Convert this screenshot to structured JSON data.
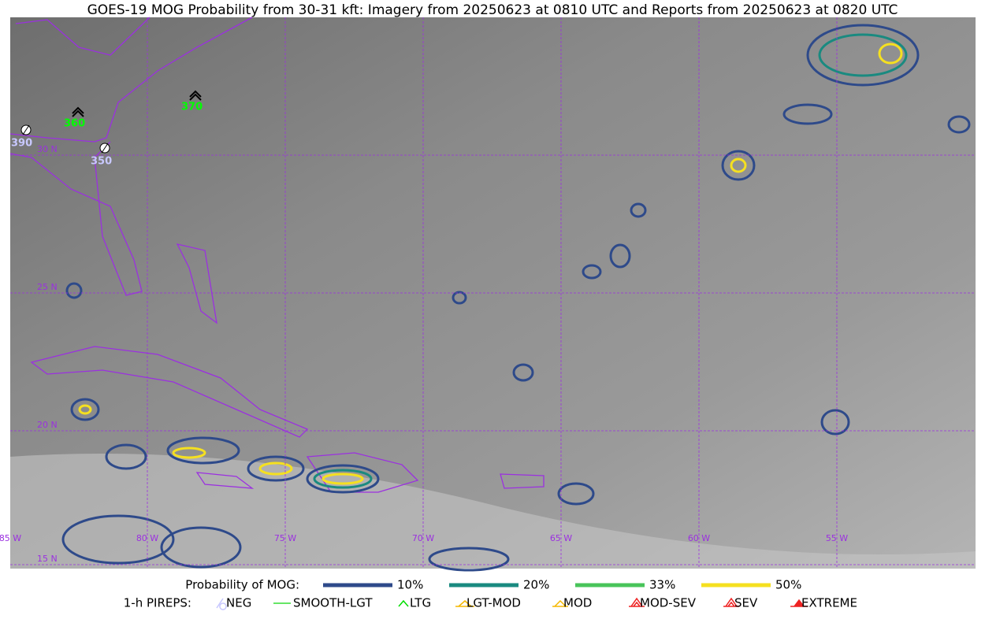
{
  "title": "GOES-19 MOG Probability from 30-31 kft: Imagery from 20250623 at 0810 UTC and Reports from 20250623 at 0820 UTC",
  "map": {
    "lat_labels": [
      "30 N",
      "25 N",
      "20 N",
      "15 N"
    ],
    "lon_labels": [
      "85 W",
      "80 W",
      "75 W",
      "70 W",
      "65 W",
      "60 W",
      "55 W"
    ],
    "pireps": [
      {
        "label": "390",
        "kind": "NEG",
        "color": "#c8c8ff"
      },
      {
        "label": "360",
        "kind": "LTG",
        "color": "#00ff00"
      },
      {
        "label": "370",
        "kind": "LTG",
        "color": "#00ff00"
      },
      {
        "label": "350",
        "kind": "NEG",
        "color": "#c8c8ff"
      }
    ]
  },
  "legend": {
    "probability_title": "Probability of MOG:",
    "probability": [
      {
        "name": "10%",
        "color": "#2e4a8a"
      },
      {
        "name": "20%",
        "color": "#1a8a80"
      },
      {
        "name": "33%",
        "color": "#48c45a"
      },
      {
        "name": "50%",
        "color": "#f5e020"
      }
    ],
    "pirep_title": "1-h PIREPS:",
    "pireps": [
      {
        "name": "NEG",
        "color": "#c8c8ff"
      },
      {
        "name": "SMOOTH-LGT",
        "color": "#33dd33"
      },
      {
        "name": "LTG",
        "color": "#00dd00"
      },
      {
        "name": "LGT-MOD",
        "color": "#f5b800"
      },
      {
        "name": "MOD",
        "color": "#f5b800"
      },
      {
        "name": "MOD-SEV",
        "color": "#ee2222"
      },
      {
        "name": "SEV",
        "color": "#ee2222"
      },
      {
        "name": "EXTREME",
        "color": "#ee2222"
      }
    ]
  }
}
